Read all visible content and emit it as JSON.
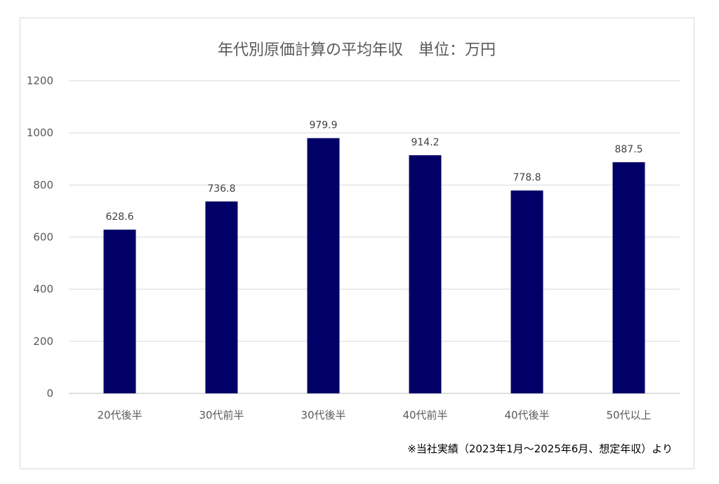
{
  "chart_data": {
    "type": "bar",
    "title": "年代別原価計算の平均年収　単位：万円",
    "categories": [
      "20代後半",
      "30代前半",
      "30代後半",
      "40代前半",
      "40代後半",
      "50代以上"
    ],
    "values": [
      628.6,
      736.8,
      979.9,
      914.2,
      778.8,
      887.5
    ],
    "data_labels": [
      "628.6",
      "736.8",
      "979.9",
      "914.2",
      "778.8",
      "887.5"
    ],
    "yticks": [
      "0",
      "200",
      "400",
      "600",
      "800",
      "1000",
      "1200"
    ],
    "ylim": [
      0,
      1200
    ],
    "xlabel": "",
    "ylabel": "",
    "grid": true,
    "legend": "none",
    "bar_color": "#000066",
    "annotation": "※当社実績（2023年1月～2025年6月、想定年収）より"
  }
}
